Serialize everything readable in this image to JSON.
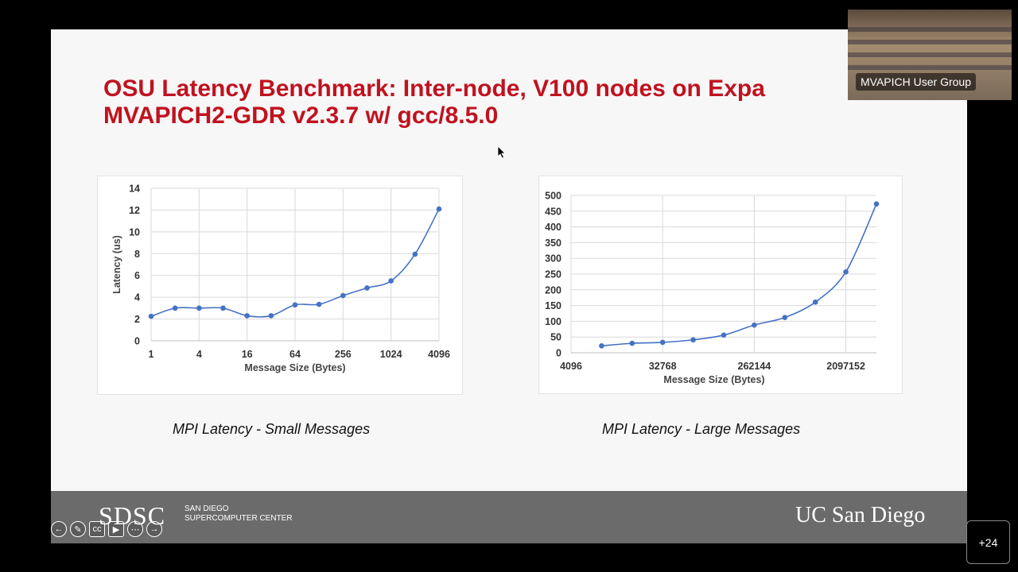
{
  "slide": {
    "title_line1": "OSU Latency Benchmark: Inter-node, V100 nodes on Expa",
    "title_line2": "MVAPICH2-GDR v2.3.7 w/ gcc/8.5.0",
    "caption_small": "MPI Latency - Small Messages",
    "caption_large": "MPI Latency - Large Messages",
    "footer_logo_left": "SDSC",
    "footer_logo_left_sub1": "SAN DIEGO",
    "footer_logo_left_sub2": "SUPERCOMPUTER CENTER",
    "footer_logo_right": "UC San Diego"
  },
  "video": {
    "label": "MVAPICH User Group"
  },
  "participants": {
    "label": "+24"
  },
  "controls": [
    "back-icon",
    "pen-icon",
    "cc-icon",
    "video-icon",
    "more-icon",
    "forward-icon"
  ],
  "colors": {
    "title": "#c0121f",
    "series": "#4472c4",
    "footer": "#6b6b6b"
  },
  "chart_data": [
    {
      "type": "line",
      "xlabel": "Message Size (Bytes)",
      "ylabel": "Latency (us)",
      "x_scale": "log2",
      "x_tick_labels": [
        "1",
        "4",
        "16",
        "64",
        "256",
        "1024",
        "4096"
      ],
      "x_ticks": [
        1,
        4,
        16,
        64,
        256,
        1024,
        4096
      ],
      "ylim": [
        0,
        14
      ],
      "y_ticks": [
        0,
        2,
        4,
        6,
        8,
        10,
        12,
        14
      ],
      "grid": true,
      "x": [
        1,
        2,
        4,
        8,
        16,
        32,
        64,
        128,
        256,
        512,
        1024,
        2048,
        4096
      ],
      "values": [
        2.25,
        3.0,
        3.0,
        3.0,
        2.3,
        2.3,
        3.3,
        3.35,
        4.15,
        4.85,
        5.5,
        7.95,
        12.1
      ]
    },
    {
      "type": "line",
      "xlabel": "Message Size (Bytes)",
      "ylabel": "",
      "x_scale": "log2",
      "x_tick_labels": [
        "4096",
        "32768",
        "262144",
        "2097152"
      ],
      "x_ticks": [
        4096,
        32768,
        262144,
        2097152
      ],
      "ylim": [
        0,
        500
      ],
      "y_ticks": [
        0,
        50,
        100,
        150,
        200,
        250,
        300,
        350,
        400,
        450,
        500
      ],
      "grid": true,
      "x": [
        8192,
        16384,
        32768,
        65536,
        131072,
        262144,
        524288,
        1048576,
        2097152,
        4194304
      ],
      "values": [
        22,
        30,
        33,
        41,
        56,
        88,
        112,
        161,
        257,
        473
      ]
    }
  ]
}
